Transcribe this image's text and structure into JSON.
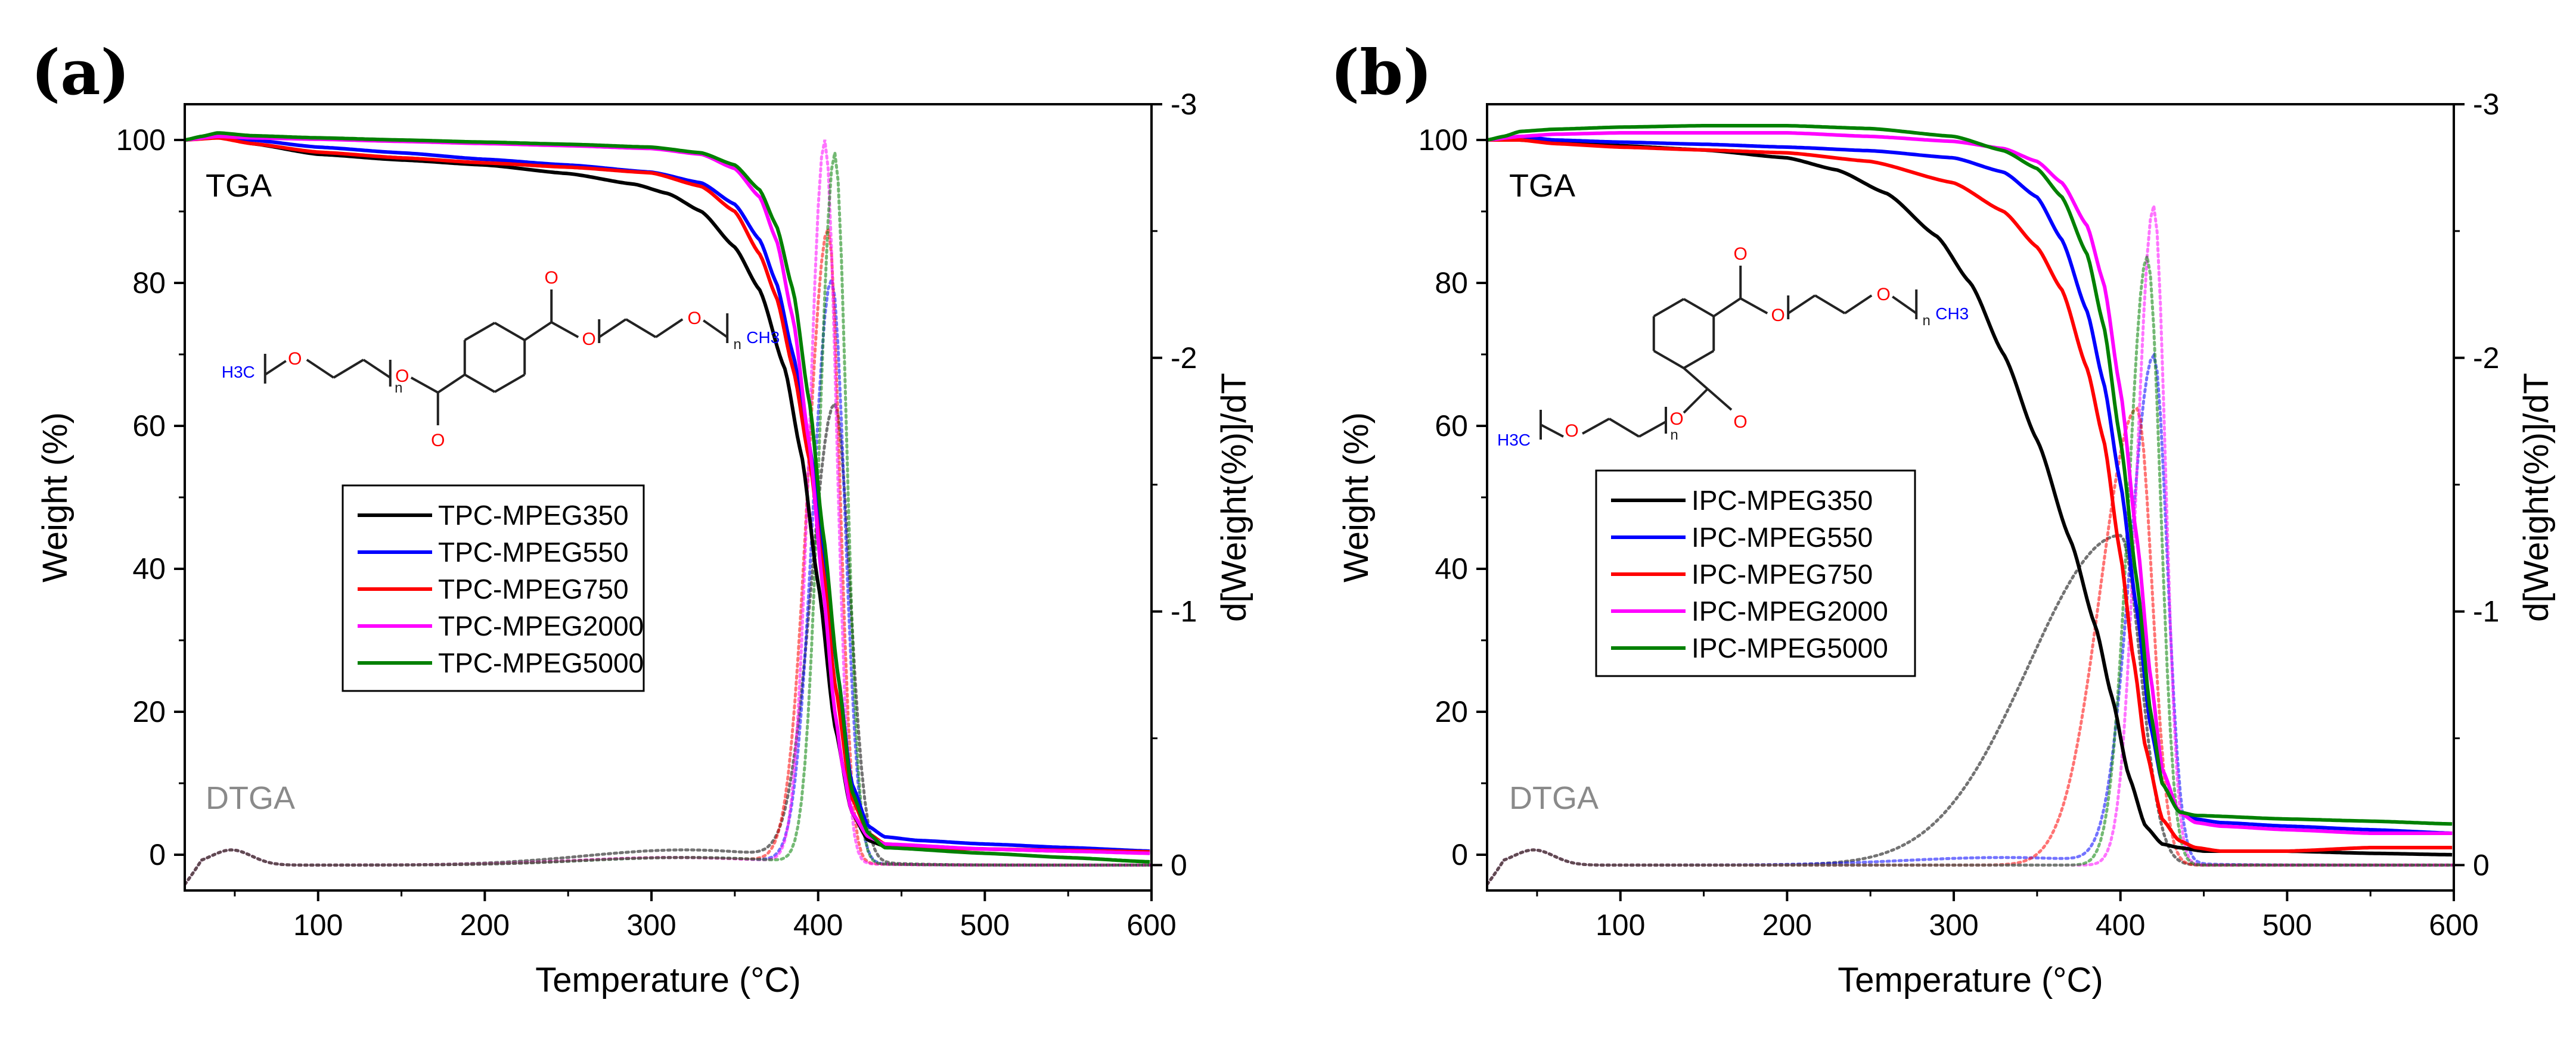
{
  "colors": {
    "MPEG350": "#000000",
    "MPEG550": "#0000ff",
    "MPEG750": "#ff0000",
    "MPEG2000": "#ff00ff",
    "MPEG5000": "#008000",
    "oxygen": "#ff0000",
    "methyl": "#0000ff",
    "dtga_text": "#8a8a8a"
  },
  "chart_data": [
    {
      "panel": "(a)",
      "type": "line",
      "xlabel": "Temperature (°C)",
      "ylabel": "Weight (%)",
      "y2label": "d[Weight(%)]/dT",
      "xlim": [
        20,
        600
      ],
      "ylim": [
        -5,
        105
      ],
      "y2lim": [
        0.1,
        -3.0
      ],
      "xticks": [
        "100",
        "200",
        "300",
        "400",
        "500",
        "600"
      ],
      "yticks": [
        "0",
        "20",
        "40",
        "60",
        "80",
        "100"
      ],
      "y2ticks": [
        "0",
        "-1",
        "-2",
        "-3"
      ],
      "annotations": {
        "tga": "TGA",
        "dtga": "DTGA"
      },
      "structure": {
        "methyl": "H3C",
        "n1": "n",
        "n2": "n",
        "methyl2": "CH3",
        "o_carbonyl": "O",
        "o_ether": "O"
      },
      "legend": [
        "TPC-MPEG350",
        "TPC-MPEG550",
        "TPC-MPEG750",
        "TPC-MPEG2000",
        "TPC-MPEG5000"
      ],
      "series": [
        {
          "name": "TPC-MPEG350",
          "color_key": "MPEG350",
          "tga": {
            "x": [
              20,
              40,
              60,
              100,
              150,
              200,
              250,
              290,
              310,
              330,
              350,
              365,
              380,
              390,
              400,
              410,
              420,
              430,
              440,
              460,
              500,
              550,
              600
            ],
            "y": [
              100,
              100.5,
              99.5,
              98,
              97.2,
              96.5,
              95.3,
              93.8,
              92.5,
              90,
              85,
              79,
              68,
              56,
              38,
              18,
              6,
              2,
              1.2,
              1,
              0.8,
              0.5,
              0.3
            ]
          },
          "dtga": {
            "peak": 410,
            "amp": 1.8,
            "sigL": 14,
            "sigR": 9,
            "tail": 0.06
          }
        },
        {
          "name": "TPC-MPEG550",
          "color_key": "MPEG550",
          "tga": {
            "x": [
              20,
              40,
              60,
              100,
              150,
              200,
              250,
              300,
              330,
              350,
              365,
              375,
              385,
              395,
              403,
              412,
              420,
              430,
              440,
              460,
              500,
              550,
              600
            ],
            "y": [
              100,
              100.5,
              100,
              99,
              98.2,
              97.3,
              96.5,
              95.5,
              94,
              91,
              86,
              80,
              70,
              57,
              43,
              25,
              10,
              4,
              2.5,
              2,
              1.5,
              1,
              0.5
            ]
          },
          "dtga": {
            "peak": 408,
            "amp": 2.3,
            "sigL": 11,
            "sigR": 8,
            "tail": 0.03
          }
        },
        {
          "name": "TPC-MPEG750",
          "color_key": "MPEG750",
          "tga": {
            "x": [
              20,
              40,
              60,
              100,
              150,
              200,
              250,
              300,
              330,
              350,
              365,
              375,
              385,
              395,
              403,
              410,
              420,
              430,
              440,
              460,
              500,
              550,
              600
            ],
            "y": [
              100,
              100.3,
              99.5,
              98.3,
              97.5,
              96.8,
              96.2,
              95.4,
              93.5,
              90,
              84,
              78,
              68,
              55,
              40,
              24,
              8,
              3,
              1.5,
              1,
              0.8,
              0.6,
              0.4
            ]
          },
          "dtga": {
            "peak": 406,
            "amp": 2.5,
            "sigL": 12,
            "sigR": 7,
            "tail": 0.03
          }
        },
        {
          "name": "TPC-MPEG2000",
          "color_key": "MPEG2000",
          "tga": {
            "x": [
              20,
              40,
              60,
              100,
              150,
              200,
              250,
              300,
              330,
              350,
              365,
              375,
              385,
              395,
              403,
              410,
              415,
              420,
              430,
              440,
              500,
              550,
              600
            ],
            "y": [
              100,
              100.5,
              100.3,
              100.1,
              99.8,
              99.5,
              99.2,
              98.8,
              98,
              96,
              92,
              86,
              75,
              57,
              37,
              20,
              12,
              6,
              2.5,
              1.5,
              0.8,
              0.5,
              0.2
            ]
          },
          "dtga": {
            "peak": 404,
            "amp": 2.85,
            "sigL": 9,
            "sigR": 7,
            "tail": 0.03
          }
        },
        {
          "name": "TPC-MPEG5000",
          "color_key": "MPEG5000",
          "tga": {
            "x": [
              20,
              30,
              40,
              60,
              100,
              150,
              200,
              250,
              300,
              330,
              350,
              365,
              375,
              385,
              395,
              403,
              412,
              420,
              430,
              440,
              500,
              550,
              600
            ],
            "y": [
              100,
              100.5,
              101,
              100.6,
              100.3,
              100,
              99.7,
              99.4,
              99,
              98.2,
              96.5,
              93,
              88,
              79,
              63,
              45,
              25,
              9,
              3,
              1,
              0.2,
              -0.4,
              -1
            ]
          },
          "dtga": {
            "peak": 410,
            "amp": 2.8,
            "sigL": 9,
            "sigR": 7,
            "tail": 0.03
          }
        }
      ]
    },
    {
      "panel": "(b)",
      "type": "line",
      "xlabel": "Temperature (°C)",
      "ylabel": "Weight (%)",
      "y2label": "d[Weight(%)]/dT",
      "xlim": [
        20,
        600
      ],
      "ylim": [
        -5,
        105
      ],
      "y2lim": [
        0.1,
        -3.0
      ],
      "xticks": [
        "100",
        "200",
        "300",
        "400",
        "500",
        "600"
      ],
      "yticks": [
        "0",
        "20",
        "40",
        "60",
        "80",
        "100"
      ],
      "y2ticks": [
        "0",
        "-1",
        "-2",
        "-3"
      ],
      "annotations": {
        "tga": "TGA",
        "dtga": "DTGA"
      },
      "structure": {
        "methyl": "H3C",
        "n1": "n",
        "n2": "n",
        "methyl2": "CH3",
        "o_carbonyl": "O",
        "o_ether": "O"
      },
      "legend": [
        "IPC-MPEG350",
        "IPC-MPEG550",
        "IPC-MPEG750",
        "IPC-MPEG2000",
        "IPC-MPEG5000"
      ],
      "series": [
        {
          "name": "IPC-MPEG350",
          "color_key": "MPEG350",
          "tga": {
            "x": [
              20,
              40,
              60,
              100,
              150,
              200,
              230,
              260,
              290,
              310,
              330,
              350,
              370,
              385,
              395,
              405,
              415,
              425,
              435,
              450,
              500,
              550,
              600
            ],
            "y": [
              100,
              100,
              99.6,
              99.2,
              98.6,
              97.5,
              95.8,
              92.5,
              86.5,
              80,
              70,
              58,
              44,
              32,
              22,
              11,
              4,
              1.5,
              1,
              0.5,
              0.5,
              0.2,
              0
            ]
          },
          "dtga": {
            "peak": 400,
            "amp": 1.3,
            "sigL": 55,
            "sigR": 12,
            "tail": 0.0
          }
        },
        {
          "name": "IPC-MPEG550",
          "color_key": "MPEG550",
          "tga": {
            "x": [
              20,
              40,
              60,
              100,
              150,
              200,
              250,
              300,
              330,
              350,
              365,
              380,
              390,
              400,
              410,
              418,
              425,
              435,
              445,
              460,
              500,
              550,
              600
            ],
            "y": [
              100,
              100.5,
              100,
              99.7,
              99.4,
              99,
              98.5,
              97.5,
              95.5,
              92,
              86,
              76,
              66,
              52,
              34,
              18,
              10,
              6,
              5,
              4.5,
              4,
              3.5,
              3
            ]
          },
          "dtga": {
            "peak": 420,
            "amp": 2.0,
            "sigL": 14,
            "sigR": 8,
            "tail": 0.03
          }
        },
        {
          "name": "IPC-MPEG750",
          "color_key": "MPEG750",
          "tga": {
            "x": [
              20,
              40,
              60,
              100,
              150,
              200,
              250,
              300,
              330,
              350,
              365,
              380,
              390,
              400,
              408,
              415,
              425,
              435,
              445,
              460,
              500,
              550,
              600
            ],
            "y": [
              100,
              100,
              99.5,
              99,
              98.6,
              98.2,
              97,
              94,
              90,
              85,
              79,
              68,
              58,
              42,
              27,
              15,
              5,
              2,
              1,
              0.5,
              0.5,
              1,
              1
            ]
          },
          "dtga": {
            "peak": 410,
            "amp": 1.8,
            "sigL": 22,
            "sigR": 9,
            "tail": 0.0
          }
        },
        {
          "name": "IPC-MPEG2000",
          "color_key": "MPEG2000",
          "tga": {
            "x": [
              20,
              40,
              60,
              100,
              150,
              200,
              250,
              300,
              330,
              350,
              365,
              380,
              390,
              400,
              410,
              418,
              425,
              435,
              445,
              460,
              500,
              550,
              600
            ],
            "y": [
              100,
              100.5,
              100.8,
              101,
              101,
              101,
              100.5,
              99.8,
              98.8,
              97,
              94,
              88,
              80,
              65,
              44,
              25,
              12,
              6,
              4.5,
              4,
              3.5,
              3,
              3
            ]
          },
          "dtga": {
            "peak": 420,
            "amp": 2.6,
            "sigL": 10,
            "sigR": 7,
            "tail": 0.0
          }
        },
        {
          "name": "IPC-MPEG5000",
          "color_key": "MPEG5000",
          "tga": {
            "x": [
              20,
              30,
              40,
              60,
              100,
              150,
              200,
              250,
              300,
              330,
              350,
              365,
              380,
              390,
              400,
              410,
              418,
              425,
              435,
              445,
              500,
              550,
              600
            ],
            "y": [
              100,
              100.5,
              101.2,
              101.5,
              101.8,
              102,
              102,
              101.6,
              100.5,
              98.5,
              96,
              92,
              84,
              74,
              58,
              38,
              20,
              10,
              6,
              5.5,
              5,
              4.7,
              4.3
            ]
          },
          "dtga": {
            "peak": 416,
            "amp": 2.4,
            "sigL": 11,
            "sigR": 8,
            "tail": 0.0
          }
        }
      ]
    }
  ]
}
